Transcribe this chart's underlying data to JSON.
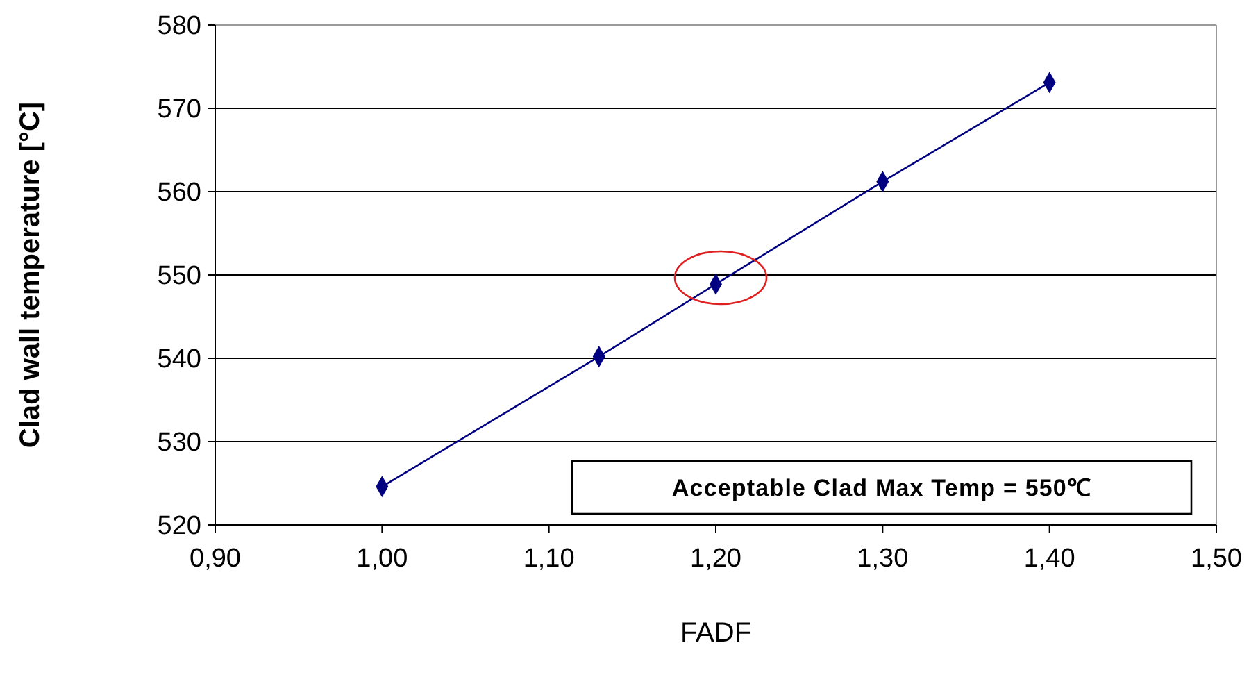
{
  "chart_data": {
    "type": "line",
    "xlabel": "FADF",
    "ylabel": "Clad wall temperature [°C]",
    "annotations": [
      "Acceptable Clad Max Temp = 550℃"
    ],
    "x": [
      1.0,
      1.13,
      1.2,
      1.3,
      1.4
    ],
    "series": [
      {
        "color": "#000080",
        "values": [
          524.6,
          540.2,
          548.9,
          561.2,
          573.1
        ]
      }
    ],
    "xlim": [
      0.9,
      1.5
    ],
    "xticks": [
      {
        "value": 0.9,
        "label": "0,90"
      },
      {
        "value": 1.0,
        "label": "1,00"
      },
      {
        "value": 1.1,
        "label": "1,10"
      },
      {
        "value": 1.2,
        "label": "1,20"
      },
      {
        "value": 1.3,
        "label": "1,30"
      },
      {
        "value": 1.4,
        "label": "1,40"
      },
      {
        "value": 1.5,
        "label": "1,50"
      }
    ],
    "ylim": [
      520,
      580
    ],
    "yticks": [
      520,
      530,
      540,
      550,
      560,
      570,
      580
    ],
    "grid": "y",
    "marker": "diamond",
    "line_style": "solid"
  }
}
